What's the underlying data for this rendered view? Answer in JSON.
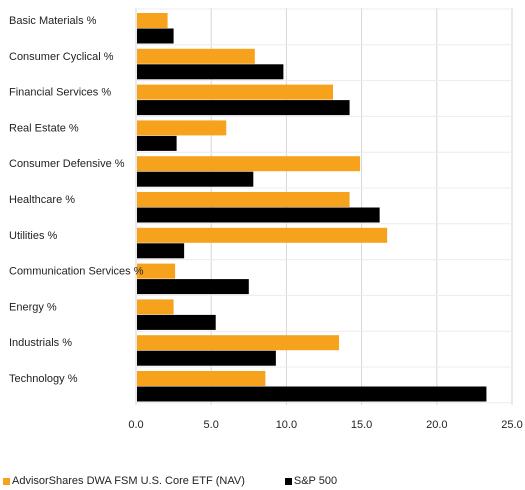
{
  "chart_data": {
    "type": "bar",
    "orientation": "horizontal",
    "categories": [
      "Basic Materials %",
      "Consumer Cyclical %",
      "Financial Services %",
      "Real Estate %",
      "Consumer Defensive %",
      "Healthcare %",
      "Utilities %",
      "Communication Services %",
      "Energy %",
      "Industrials %",
      "Technology %"
    ],
    "series": [
      {
        "name": "AdvisorShares DWA FSM U.S. Core ETF (NAV)",
        "color": "#f7a21d",
        "values": [
          2.1,
          7.9,
          13.1,
          6.0,
          14.9,
          14.2,
          16.7,
          2.6,
          2.5,
          13.5,
          8.6
        ]
      },
      {
        "name": "S&P 500",
        "color": "#000000",
        "values": [
          2.5,
          9.8,
          14.2,
          2.7,
          7.8,
          16.2,
          3.2,
          7.5,
          5.3,
          9.3,
          23.3
        ]
      }
    ],
    "xlim": [
      0,
      25
    ],
    "xticks": [
      "0.0",
      "5.0",
      "10.0",
      "15.0",
      "20.0",
      "25.0"
    ],
    "grid": true,
    "legend_position": "bottom"
  }
}
